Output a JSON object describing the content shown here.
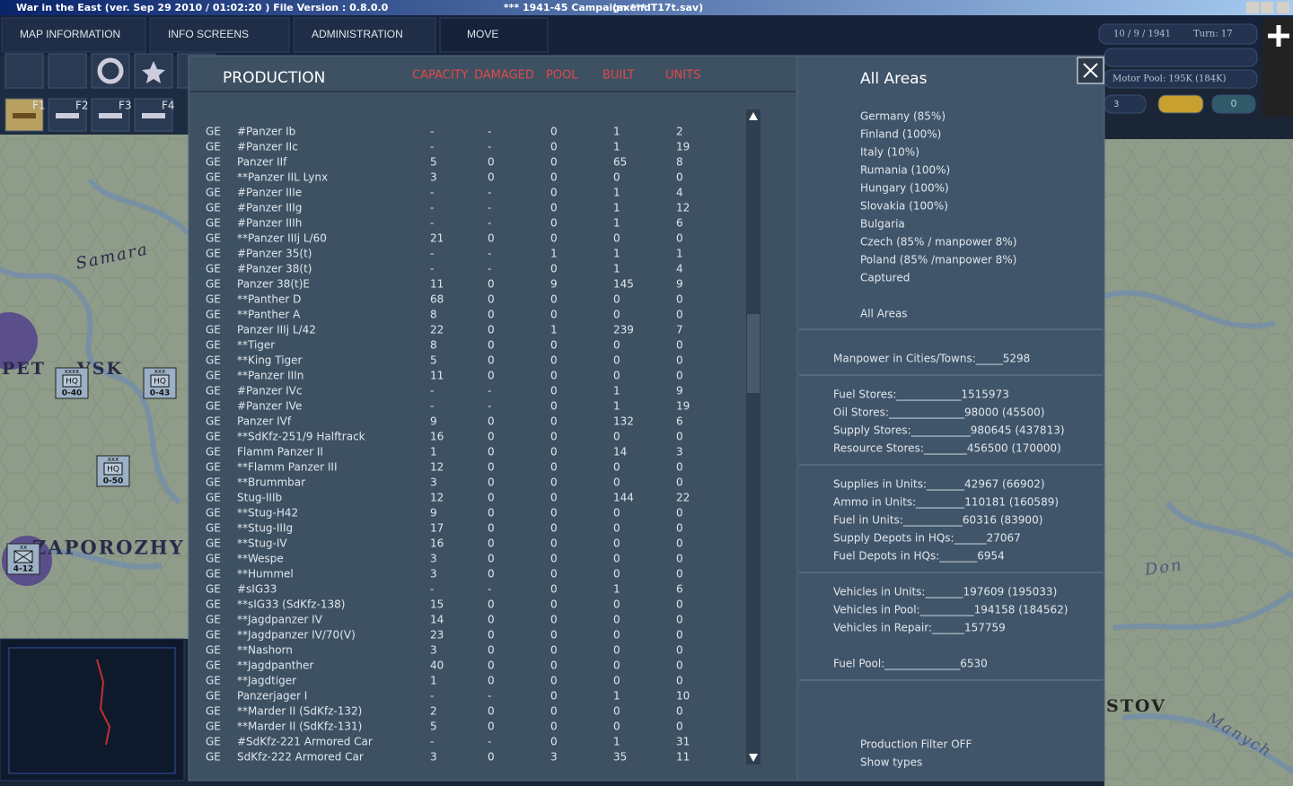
{
  "window": {
    "title": "War in the East (ver. Sep 29 2010 / 01:02:20 )   File Version : 0.8.0.0",
    "campaign": "***   1941-45 Campaign   ***",
    "file": "(axendT17t.sav)"
  },
  "menu": [
    "MAP INFORMATION",
    "INFO SCREENS",
    "ADMINISTRATION",
    "MOVE"
  ],
  "function_keys": [
    "F1",
    "F2",
    "F3",
    "F4"
  ],
  "status": {
    "date": "10 / 9 / 1941",
    "turn": "Turn: 17",
    "motor_pool": "Motor Pool: 195K (184K)",
    "field_a": "3",
    "field_b": "0"
  },
  "production": {
    "title": "PRODUCTION",
    "columns": [
      "CAPACITY",
      "DAMAGED",
      "POOL",
      "BUILT",
      "UNITS"
    ],
    "rows": [
      [
        "GE",
        "#Panzer Ib",
        "-",
        "-",
        "0",
        "1",
        "2"
      ],
      [
        "GE",
        "#Panzer IIc",
        "-",
        "-",
        "0",
        "1",
        "19"
      ],
      [
        "GE",
        "Panzer IIf",
        "5",
        "0",
        "0",
        "65",
        "8"
      ],
      [
        "GE",
        "**Panzer IIL Lynx",
        "3",
        "0",
        "0",
        "0",
        "0"
      ],
      [
        "GE",
        "#Panzer IIIe",
        "-",
        "-",
        "0",
        "1",
        "4"
      ],
      [
        "GE",
        "#Panzer IIIg",
        "-",
        "-",
        "0",
        "1",
        "12"
      ],
      [
        "GE",
        "#Panzer IIIh",
        "-",
        "-",
        "0",
        "1",
        "6"
      ],
      [
        "GE",
        "**Panzer IIIj L/60",
        "21",
        "0",
        "0",
        "0",
        "0"
      ],
      [
        "GE",
        "#Panzer 35(t)",
        "-",
        "-",
        "1",
        "1",
        "1"
      ],
      [
        "GE",
        "#Panzer 38(t)",
        "-",
        "-",
        "0",
        "1",
        "4"
      ],
      [
        "GE",
        "Panzer 38(t)E",
        "11",
        "0",
        "9",
        "145",
        "9"
      ],
      [
        "GE",
        "**Panther D",
        "68",
        "0",
        "0",
        "0",
        "0"
      ],
      [
        "GE",
        "**Panther A",
        "8",
        "0",
        "0",
        "0",
        "0"
      ],
      [
        "GE",
        "Panzer IIIj L/42",
        "22",
        "0",
        "1",
        "239",
        "7"
      ],
      [
        "GE",
        "**Tiger",
        "8",
        "0",
        "0",
        "0",
        "0"
      ],
      [
        "GE",
        "**King Tiger",
        "5",
        "0",
        "0",
        "0",
        "0"
      ],
      [
        "GE",
        "**Panzer IIIn",
        "11",
        "0",
        "0",
        "0",
        "0"
      ],
      [
        "GE",
        "#Panzer IVc",
        "-",
        "-",
        "0",
        "1",
        "9"
      ],
      [
        "GE",
        "#Panzer IVe",
        "-",
        "-",
        "0",
        "1",
        "19"
      ],
      [
        "GE",
        "Panzer IVf",
        "9",
        "0",
        "0",
        "132",
        "6"
      ],
      [
        "GE",
        "**SdKfz-251/9 Halftrack",
        "16",
        "0",
        "0",
        "0",
        "0"
      ],
      [
        "GE",
        "Flamm Panzer II",
        "1",
        "0",
        "0",
        "14",
        "3"
      ],
      [
        "GE",
        "**Flamm Panzer III",
        "12",
        "0",
        "0",
        "0",
        "0"
      ],
      [
        "GE",
        "**Brummbar",
        "3",
        "0",
        "0",
        "0",
        "0"
      ],
      [
        "GE",
        "Stug-IIIb",
        "12",
        "0",
        "0",
        "144",
        "22"
      ],
      [
        "GE",
        "**Stug-H42",
        "9",
        "0",
        "0",
        "0",
        "0"
      ],
      [
        "GE",
        "**Stug-IIIg",
        "17",
        "0",
        "0",
        "0",
        "0"
      ],
      [
        "GE",
        "**Stug-IV",
        "16",
        "0",
        "0",
        "0",
        "0"
      ],
      [
        "GE",
        "**Wespe",
        "3",
        "0",
        "0",
        "0",
        "0"
      ],
      [
        "GE",
        "**Hummel",
        "3",
        "0",
        "0",
        "0",
        "0"
      ],
      [
        "GE",
        "#sIG33",
        "-",
        "-",
        "0",
        "1",
        "6"
      ],
      [
        "GE",
        "**sIG33 (SdKfz-138)",
        "15",
        "0",
        "0",
        "0",
        "0"
      ],
      [
        "GE",
        "**Jagdpanzer IV",
        "14",
        "0",
        "0",
        "0",
        "0"
      ],
      [
        "GE",
        "**Jagdpanzer IV/70(V)",
        "23",
        "0",
        "0",
        "0",
        "0"
      ],
      [
        "GE",
        "**Nashorn",
        "3",
        "0",
        "0",
        "0",
        "0"
      ],
      [
        "GE",
        "**Jagdpanther",
        "40",
        "0",
        "0",
        "0",
        "0"
      ],
      [
        "GE",
        "**Jagdtiger",
        "1",
        "0",
        "0",
        "0",
        "0"
      ],
      [
        "GE",
        "Panzerjager I",
        "-",
        "-",
        "0",
        "1",
        "10"
      ],
      [
        "GE",
        "**Marder II (SdKfz-132)",
        "2",
        "0",
        "0",
        "0",
        "0"
      ],
      [
        "GE",
        "**Marder II (SdKfz-131)",
        "5",
        "0",
        "0",
        "0",
        "0"
      ],
      [
        "GE",
        "#SdKfz-221 Armored Car",
        "-",
        "-",
        "0",
        "1",
        "31"
      ],
      [
        "GE",
        "SdKfz-222 Armored Car",
        "3",
        "0",
        "3",
        "35",
        "11"
      ]
    ]
  },
  "areas": {
    "title": "All Areas",
    "list": [
      "Germany  (85%)",
      "Finland  (100%)",
      "Italy  (10%)",
      "Rumania  (100%)",
      "Hungary  (100%)",
      "Slovakia  (100%)",
      "Bulgaria",
      "Czech  (85% / manpower 8%)",
      "Poland  (85% /manpower 8%)",
      "Captured"
    ],
    "all": "All Areas"
  },
  "stats": [
    [
      "Manpower in Cities/Towns:_____5298"
    ],
    [
      "Fuel Stores:____________1515973",
      "Oil Stores:______________98000 (45500)",
      "Supply Stores:___________980645 (437813)",
      "Resource Stores:________456500 (170000)"
    ],
    [
      "Supplies in Units:_______42967 (66902)",
      "Ammo in Units:_________110181 (160589)",
      "Fuel in Units:___________60316 (83900)",
      "Supply Depots in HQs:______27067",
      "Fuel Depots in HQs:_______6954"
    ],
    [
      "Vehicles in Units:_______197609 (195033)",
      "Vehicles in Pool:__________194158 (184562)",
      "Vehicles in Repair:______157759"
    ],
    [
      "Fuel Pool:______________6530"
    ]
  ],
  "filters": [
    "Production Filter OFF",
    "Show types"
  ],
  "map": {
    "labels": [
      "Samara",
      "PET",
      "VSK",
      "ZAPOROZHY",
      "Don",
      "STOV",
      "Manych"
    ],
    "counters": [
      {
        "size": "xxxx",
        "type": "HQ",
        "value": "0-40"
      },
      {
        "size": "xxx",
        "type": "HQ",
        "value": "0-43"
      },
      {
        "size": "xxx",
        "type": "HQ",
        "value": "0-50"
      },
      {
        "size": "xx",
        "value": "4-12"
      }
    ]
  }
}
